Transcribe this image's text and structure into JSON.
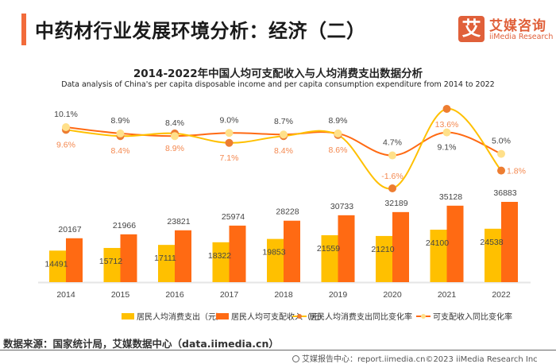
{
  "header": {
    "title": "中药材行业发展环境分析：经济（二）",
    "logo": {
      "mark": "艾",
      "name_cn": "艾媒咨询",
      "name_en": "iiMedia Research"
    }
  },
  "colors": {
    "accent": "#f26b3a",
    "expenditure_bar": "#ffc000",
    "income_bar": "#ff6a13",
    "expenditure_line": "#ffc000",
    "expenditure_dot": "#ed7d31",
    "income_line": "#ff6a13",
    "income_dot": "#ffe08a",
    "income_rate_label": "#444444",
    "expenditure_rate_label": "#f4884f"
  },
  "chart_data": {
    "type": "bar+line",
    "title": "2014-2022年中国人均可支配收入与人均消费支出数据分析",
    "subtitle": "Data analysis of China's per capita disposable income and per capita consumption expenditure from 2014 to 2022",
    "xlabel": "",
    "ylabel": "",
    "grid": false,
    "legend_position": "bottom",
    "categories": [
      "2014",
      "2015",
      "2016",
      "2017",
      "2018",
      "2019",
      "2020",
      "2021",
      "2022"
    ],
    "bar_series": [
      {
        "name": "居民人均消费支出（元）",
        "values": [
          14491,
          15712,
          17111,
          18322,
          19853,
          21559,
          21210,
          24100,
          24538
        ]
      },
      {
        "name": "居民人均可支配收入（元）",
        "values": [
          20167,
          21966,
          23821,
          25974,
          28228,
          30733,
          32189,
          35128,
          36883
        ]
      }
    ],
    "line_series": [
      {
        "name": "居民人均消费支出同比变化率",
        "unit": "%",
        "values": [
          9.6,
          8.4,
          8.9,
          7.1,
          8.4,
          8.6,
          -1.6,
          13.6,
          1.8
        ]
      },
      {
        "name": "可支配收入同比变化率",
        "unit": "%",
        "values": [
          10.1,
          8.9,
          8.4,
          9.0,
          8.7,
          8.9,
          4.7,
          9.1,
          5.0
        ]
      }
    ],
    "bar_ylim": [
      0,
      36883
    ],
    "line_ylim": [
      -1.6,
      13.6
    ]
  },
  "legend": [
    {
      "label": "居民人均消费支出（元）"
    },
    {
      "label": "居民人均可支配收入（元）"
    },
    {
      "label": "居民人均消费支出同比变化率"
    },
    {
      "label": "可支配收入同比变化率"
    }
  ],
  "source": "数据来源：国家统计局，艾媒数据中心（data.iimedia.cn）",
  "footer": "艾媒报告中心：report.iimedia.cn©2023  iiMedia Research Inc"
}
